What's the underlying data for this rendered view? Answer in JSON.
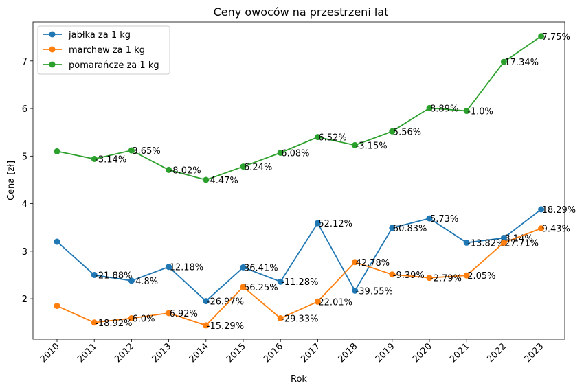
{
  "chart_data": {
    "type": "line",
    "title": "Ceny owoców na przestrzeni lat",
    "xlabel": "Rok",
    "ylabel": "Cena [zł]",
    "x": [
      "2010",
      "2011",
      "2012",
      "2013",
      "2014",
      "2015",
      "2016",
      "2017",
      "2018",
      "2019",
      "2020",
      "2021",
      "2022",
      "2023"
    ],
    "ylim": [
      1.15,
      7.82
    ],
    "yticks": [
      "2",
      "3",
      "4",
      "5",
      "6",
      "7"
    ],
    "grid": false,
    "legend_position": "top-left",
    "series": [
      {
        "name": "jabłka za 1 kg",
        "color": "#1f77b4",
        "values": [
          3.2,
          2.5,
          2.38,
          2.67,
          1.95,
          2.66,
          2.36,
          3.59,
          2.17,
          3.49,
          3.69,
          3.18,
          3.28,
          3.88
        ],
        "labels": [
          "",
          "-21.88%",
          "-4.8%",
          "12.18%",
          "-26.97%",
          "36.41%",
          "-11.28%",
          "52.12%",
          "-39.55%",
          "60.83%",
          "5.73%",
          "-13.82%",
          "3.14%",
          "18.29%"
        ]
      },
      {
        "name": "marchew za 1 kg",
        "color": "#ff7f0e",
        "values": [
          1.85,
          1.5,
          1.59,
          1.7,
          1.44,
          2.25,
          1.59,
          1.94,
          2.77,
          2.51,
          2.44,
          2.49,
          3.18,
          3.48
        ],
        "labels": [
          "",
          "-18.92%",
          "6.0%",
          "6.92%",
          "-15.29%",
          "56.25%",
          "-29.33%",
          "22.01%",
          "42.78%",
          "-9.39%",
          "-2.79%",
          "2.05%",
          "27.71%",
          "9.43%"
        ]
      },
      {
        "name": "pomarańcze za 1 kg",
        "color": "#2ca02c",
        "values": [
          5.1,
          4.94,
          5.12,
          4.71,
          4.5,
          4.78,
          5.07,
          5.4,
          5.23,
          5.52,
          6.01,
          5.95,
          6.98,
          7.52
        ],
        "labels": [
          "",
          "-3.14%",
          "3.65%",
          "-8.02%",
          "-4.47%",
          "6.24%",
          "6.08%",
          "6.52%",
          "-3.15%",
          "5.56%",
          "8.89%",
          "-1.0%",
          "17.34%",
          "7.75%"
        ]
      }
    ]
  }
}
